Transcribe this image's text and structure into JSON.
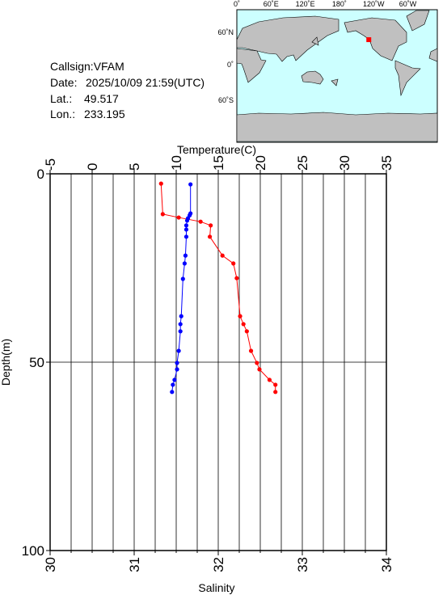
{
  "info": {
    "callsign": "Callsign:VFAM",
    "date_label": "Date:",
    "date": "2025/10/09 21:59(UTC)",
    "lat_label": "Lat.:",
    "lat": 49.517,
    "lon_label": "Lon.:",
    "lon": 233.195
  },
  "map": {
    "lon_labels": [
      "0˚",
      "60˚E",
      "120˚E",
      "180˚",
      "120˚W",
      "60˚W"
    ],
    "lat_labels": [
      "60˚N",
      "0˚",
      "60˚S"
    ]
  },
  "chart_data": {
    "type": "line",
    "x_label": "Temperature(C)",
    "x2_label": "Salinity",
    "y_label": "Depth(m)",
    "xlim": [
      -5,
      35
    ],
    "xticks": [
      -5,
      0,
      5,
      10,
      15,
      20,
      25,
      30,
      35
    ],
    "x2lim": [
      30,
      34
    ],
    "x2ticks": [
      30,
      31,
      32,
      33,
      34
    ],
    "x2grid_step": 0.25,
    "ylim": [
      0,
      100
    ],
    "yticks": [
      0,
      50,
      100
    ],
    "y_inverted": true,
    "grid": true,
    "series": [
      {
        "color": "#ff0000",
        "axis": "x",
        "values": [
          8.2,
          8.4,
          10.3,
          12.9,
          14.1,
          14.0,
          15.5,
          16.8,
          17.2,
          17.6,
          18.0,
          18.4,
          18.9,
          19.6,
          19.9,
          21.1,
          21.8,
          21.8
        ],
        "depth": [
          2.6,
          10.7,
          11.6,
          12.7,
          13.7,
          16.7,
          21.7,
          23.8,
          27.7,
          37.8,
          39.9,
          41.8,
          47.0,
          50.2,
          51.9,
          54.7,
          56.0,
          57.9
        ]
      },
      {
        "color": "#0000ff",
        "axis": "x2",
        "values": [
          31.67,
          31.67,
          31.66,
          31.64,
          31.63,
          31.62,
          31.62,
          31.62,
          31.61,
          31.6,
          31.58,
          31.56,
          31.55,
          31.55,
          31.53,
          31.51,
          31.51,
          31.48,
          31.46,
          31.45
        ],
        "depth": [
          2.8,
          10.5,
          11.0,
          11.8,
          12.4,
          13.7,
          14.8,
          16.7,
          21.7,
          23.8,
          27.9,
          37.8,
          39.9,
          41.8,
          47.0,
          50.2,
          51.9,
          54.7,
          56.0,
          57.9
        ]
      }
    ]
  }
}
